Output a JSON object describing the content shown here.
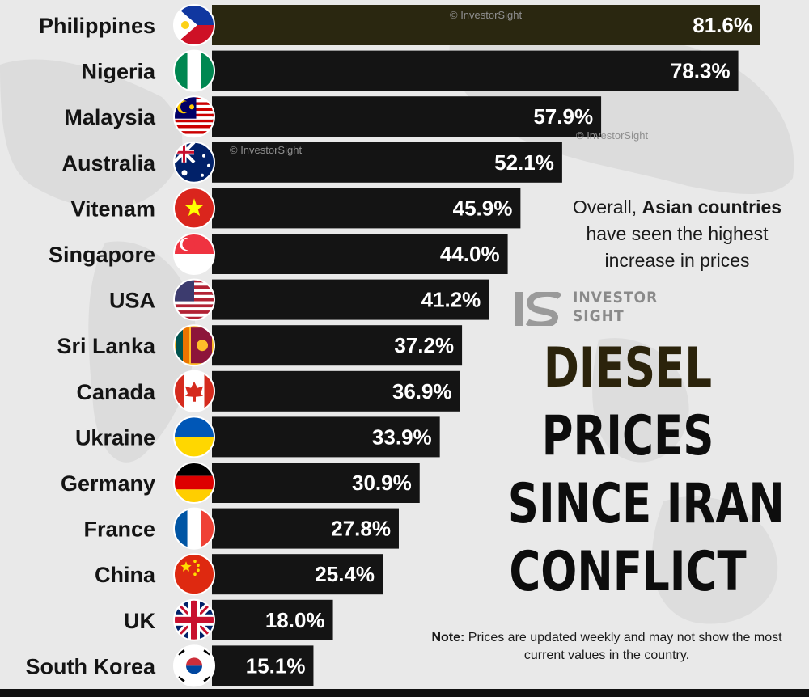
{
  "chart_data": {
    "type": "bar",
    "orientation": "horizontal",
    "unit": "%",
    "categories": [
      "Philippines",
      "Nigeria",
      "Malaysia",
      "Australia",
      "Vitenam",
      "Singapore",
      "USA",
      "Sri Lanka",
      "Canada",
      "Ukraine",
      "Germany",
      "France",
      "China",
      "UK",
      "South Korea"
    ],
    "values": [
      81.6,
      78.3,
      57.9,
      52.1,
      45.9,
      44.0,
      41.2,
      37.2,
      36.9,
      33.9,
      30.9,
      27.8,
      25.4,
      18.0,
      15.1
    ],
    "value_labels": [
      "81.6%",
      "78.3%",
      "57.9%",
      "52.1%",
      "45.9%",
      "44.0%",
      "41.2%",
      "37.2%",
      "36.9%",
      "33.9%",
      "30.9%",
      "27.8%",
      "25.4%",
      "18.0%",
      "15.1%"
    ],
    "flags": [
      "philippines-flag-icon",
      "nigeria-flag-icon",
      "malaysia-flag-icon",
      "australia-flag-icon",
      "vietnam-flag-icon",
      "singapore-flag-icon",
      "usa-flag-icon",
      "sri-lanka-flag-icon",
      "canada-flag-icon",
      "ukraine-flag-icon",
      "germany-flag-icon",
      "france-flag-icon",
      "china-flag-icon",
      "uk-flag-icon",
      "south-korea-flag-icon"
    ],
    "xlim": [
      0,
      81.6
    ],
    "grid": false,
    "legend": "none",
    "colors": {
      "bar": "#141414",
      "top_bar": "#2a2710",
      "value_text": "#ffffff",
      "background": "#e9e9e9"
    }
  },
  "title": {
    "line1": "DIESEL",
    "line2": "PRICES",
    "line3": "SINCE IRAN",
    "line4": "CONFLICT"
  },
  "side_note": {
    "prefix": "Overall,",
    "bold": "Asian countries",
    "line2": "have seen the highest",
    "line3": "increase in prices"
  },
  "footnote": {
    "label": "Note:",
    "text": "Prices are updated weekly and may not show the most current values in the country."
  },
  "brand": {
    "logo_mark": "IS",
    "line1": "INVESTOR",
    "line2": "SIGHT",
    "watermark_text": "© InvestorSight"
  }
}
